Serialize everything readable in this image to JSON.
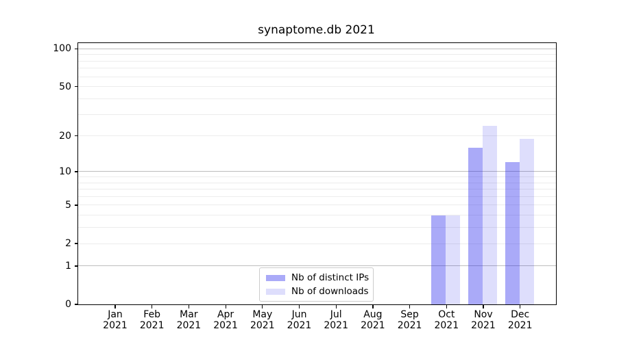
{
  "colors": {
    "ips_bar_fill": "rgba(25,25,235,0.37)",
    "ips_bar_hex": "#aaaaf8",
    "downloads_bar_fill": "rgba(25,25,235,0.145)",
    "downloads_bar_hex": "#dcdcf9",
    "major_grid": "#bdbdbd",
    "minor_grid": "#ececec",
    "axis": "#000000",
    "legend_border": "#cccccc",
    "background": "#ffffff"
  },
  "legend": {
    "entries": [
      {
        "label": "Nb of distinct IPs"
      },
      {
        "label": "Nb of downloads"
      }
    ]
  },
  "chart_data": {
    "type": "bar",
    "title": "synaptome.db 2021",
    "categories": [
      "Jan 2021",
      "Feb 2021",
      "Mar 2021",
      "Apr 2021",
      "May 2021",
      "Jun 2021",
      "Jul 2021",
      "Aug 2021",
      "Sep 2021",
      "Oct 2021",
      "Nov 2021",
      "Dec 2021"
    ],
    "series": [
      {
        "name": "Nb of distinct IPs",
        "color": "rgba(25,25,235,0.37)",
        "color_hex": "#aaaaf8",
        "values": [
          0,
          0,
          0,
          0,
          0,
          0,
          0,
          0,
          0,
          4,
          16,
          12
        ]
      },
      {
        "name": "Nb of downloads",
        "color": "rgba(25,25,235,0.145)",
        "color_hex": "#dcdcf9",
        "values": [
          0,
          0,
          0,
          0,
          0,
          0,
          0,
          0,
          0,
          4,
          24,
          19
        ]
      }
    ],
    "xlabel": "",
    "ylabel": "",
    "yscale": "log1p",
    "ylim": [
      0,
      112
    ],
    "y_ticks": [
      0,
      1,
      2,
      5,
      10,
      20,
      50,
      100
    ],
    "major_gridlines": [
      1,
      10,
      100
    ],
    "minor_gridlines": [
      2,
      3,
      4,
      5,
      6,
      7,
      8,
      9,
      20,
      30,
      40,
      50,
      60,
      70,
      80,
      90
    ],
    "grid": true,
    "legend_position": "lower center, inside axes"
  }
}
